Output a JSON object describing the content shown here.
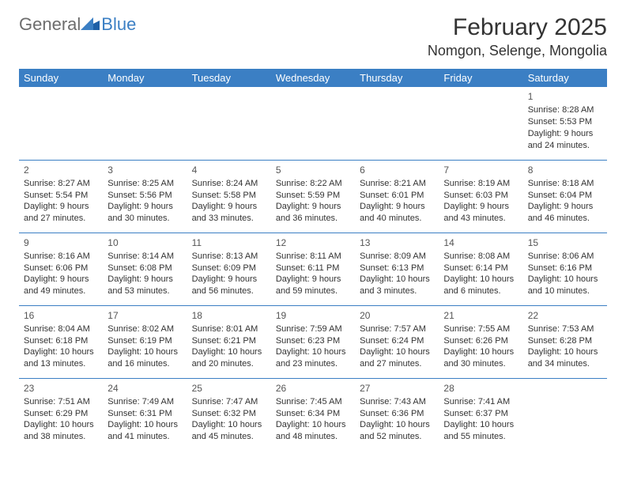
{
  "logo": {
    "general": "General",
    "blue": "Blue"
  },
  "header": {
    "month_title": "February 2025",
    "location": "Nomgon, Selenge, Mongolia"
  },
  "colors": {
    "header_bar": "#3b7fc4",
    "header_text": "#ffffff",
    "cell_border": "#3b7fc4",
    "text": "#333333",
    "logo_gray": "#6d6d6d",
    "logo_blue": "#3b7fc4",
    "background": "#ffffff"
  },
  "weekdays": [
    "Sunday",
    "Monday",
    "Tuesday",
    "Wednesday",
    "Thursday",
    "Friday",
    "Saturday"
  ],
  "layout": {
    "first_weekday_index": 6,
    "days_in_month": 28,
    "rows": 5,
    "cols": 7,
    "cell_fontsize": 11,
    "header_fontsize": 13,
    "title_fontsize": 30,
    "location_fontsize": 18
  },
  "days": {
    "1": {
      "sunrise": "8:28 AM",
      "sunset": "5:53 PM",
      "daylight": "9 hours and 24 minutes."
    },
    "2": {
      "sunrise": "8:27 AM",
      "sunset": "5:54 PM",
      "daylight": "9 hours and 27 minutes."
    },
    "3": {
      "sunrise": "8:25 AM",
      "sunset": "5:56 PM",
      "daylight": "9 hours and 30 minutes."
    },
    "4": {
      "sunrise": "8:24 AM",
      "sunset": "5:58 PM",
      "daylight": "9 hours and 33 minutes."
    },
    "5": {
      "sunrise": "8:22 AM",
      "sunset": "5:59 PM",
      "daylight": "9 hours and 36 minutes."
    },
    "6": {
      "sunrise": "8:21 AM",
      "sunset": "6:01 PM",
      "daylight": "9 hours and 40 minutes."
    },
    "7": {
      "sunrise": "8:19 AM",
      "sunset": "6:03 PM",
      "daylight": "9 hours and 43 minutes."
    },
    "8": {
      "sunrise": "8:18 AM",
      "sunset": "6:04 PM",
      "daylight": "9 hours and 46 minutes."
    },
    "9": {
      "sunrise": "8:16 AM",
      "sunset": "6:06 PM",
      "daylight": "9 hours and 49 minutes."
    },
    "10": {
      "sunrise": "8:14 AM",
      "sunset": "6:08 PM",
      "daylight": "9 hours and 53 minutes."
    },
    "11": {
      "sunrise": "8:13 AM",
      "sunset": "6:09 PM",
      "daylight": "9 hours and 56 minutes."
    },
    "12": {
      "sunrise": "8:11 AM",
      "sunset": "6:11 PM",
      "daylight": "9 hours and 59 minutes."
    },
    "13": {
      "sunrise": "8:09 AM",
      "sunset": "6:13 PM",
      "daylight": "10 hours and 3 minutes."
    },
    "14": {
      "sunrise": "8:08 AM",
      "sunset": "6:14 PM",
      "daylight": "10 hours and 6 minutes."
    },
    "15": {
      "sunrise": "8:06 AM",
      "sunset": "6:16 PM",
      "daylight": "10 hours and 10 minutes."
    },
    "16": {
      "sunrise": "8:04 AM",
      "sunset": "6:18 PM",
      "daylight": "10 hours and 13 minutes."
    },
    "17": {
      "sunrise": "8:02 AM",
      "sunset": "6:19 PM",
      "daylight": "10 hours and 16 minutes."
    },
    "18": {
      "sunrise": "8:01 AM",
      "sunset": "6:21 PM",
      "daylight": "10 hours and 20 minutes."
    },
    "19": {
      "sunrise": "7:59 AM",
      "sunset": "6:23 PM",
      "daylight": "10 hours and 23 minutes."
    },
    "20": {
      "sunrise": "7:57 AM",
      "sunset": "6:24 PM",
      "daylight": "10 hours and 27 minutes."
    },
    "21": {
      "sunrise": "7:55 AM",
      "sunset": "6:26 PM",
      "daylight": "10 hours and 30 minutes."
    },
    "22": {
      "sunrise": "7:53 AM",
      "sunset": "6:28 PM",
      "daylight": "10 hours and 34 minutes."
    },
    "23": {
      "sunrise": "7:51 AM",
      "sunset": "6:29 PM",
      "daylight": "10 hours and 38 minutes."
    },
    "24": {
      "sunrise": "7:49 AM",
      "sunset": "6:31 PM",
      "daylight": "10 hours and 41 minutes."
    },
    "25": {
      "sunrise": "7:47 AM",
      "sunset": "6:32 PM",
      "daylight": "10 hours and 45 minutes."
    },
    "26": {
      "sunrise": "7:45 AM",
      "sunset": "6:34 PM",
      "daylight": "10 hours and 48 minutes."
    },
    "27": {
      "sunrise": "7:43 AM",
      "sunset": "6:36 PM",
      "daylight": "10 hours and 52 minutes."
    },
    "28": {
      "sunrise": "7:41 AM",
      "sunset": "6:37 PM",
      "daylight": "10 hours and 55 minutes."
    }
  },
  "labels": {
    "sunrise_prefix": "Sunrise: ",
    "sunset_prefix": "Sunset: ",
    "daylight_prefix": "Daylight: "
  }
}
